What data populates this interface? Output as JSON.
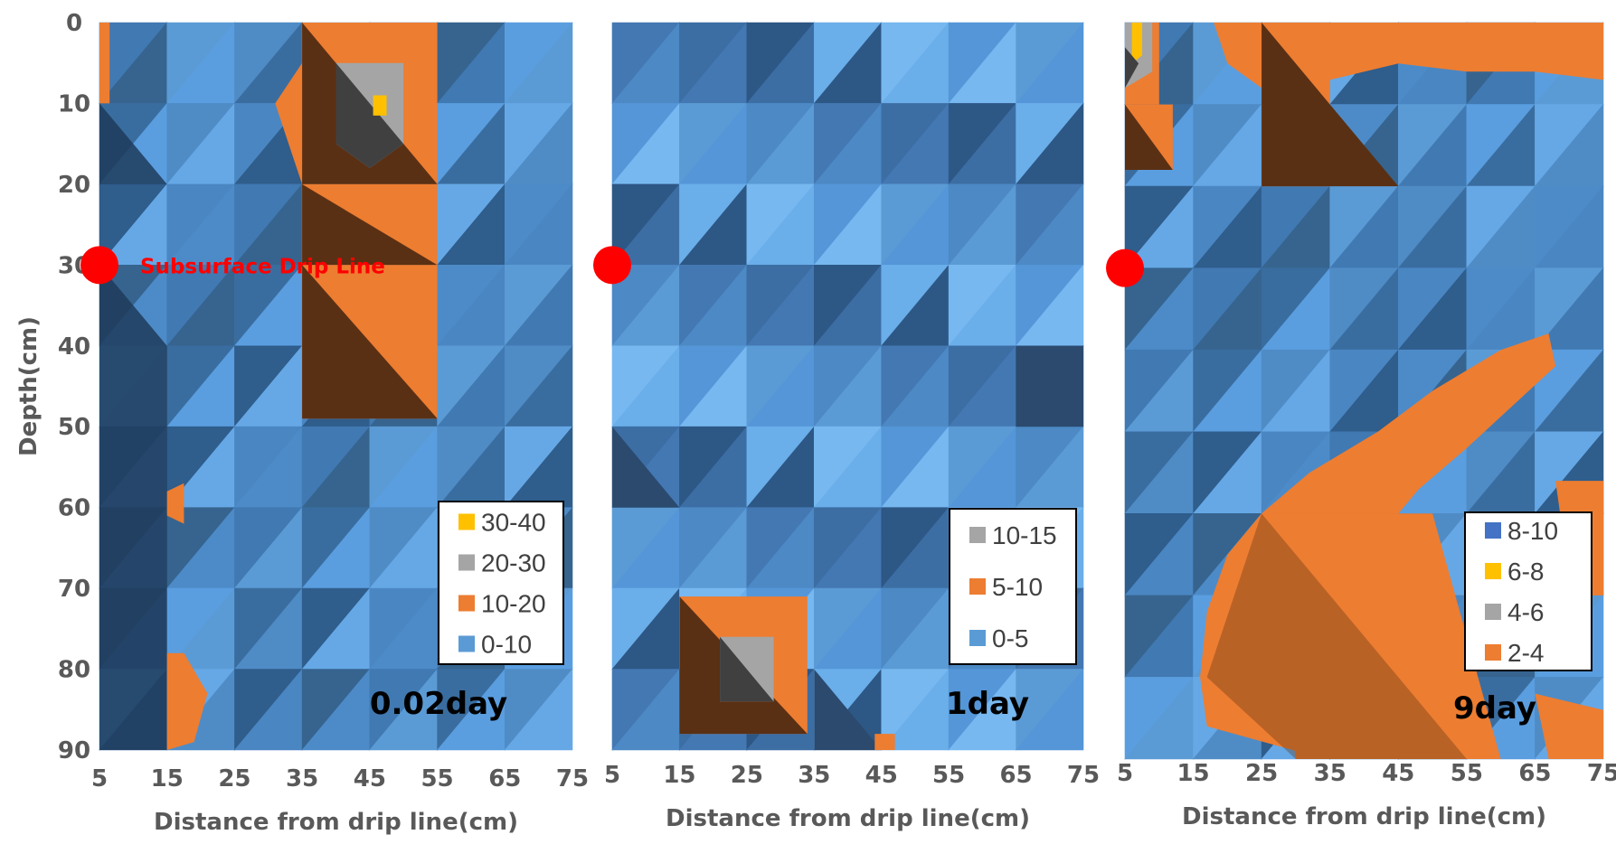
{
  "chart_data": [
    {
      "type": "heatmap",
      "day_label": "0.02day",
      "ylabel": "Depth(cm)",
      "xlabel": "Distance from drip line(cm)",
      "x_ticks": [
        "5",
        "15",
        "25",
        "35",
        "45",
        "55",
        "65",
        "75"
      ],
      "y_ticks": [
        "0",
        "10",
        "20",
        "30",
        "40",
        "50",
        "60",
        "70",
        "80",
        "90"
      ],
      "xlim": [
        5,
        75
      ],
      "ylim": [
        0,
        90
      ],
      "annotation": "Subsurface Drip Line",
      "drip_line": {
        "x": 5,
        "depth": 30
      },
      "legend": [
        {
          "label": "30-40",
          "color": "#ffc000"
        },
        {
          "label": "20-30",
          "color": "#a5a5a5"
        },
        {
          "label": "10-20",
          "color": "#ed7d31"
        },
        {
          "label": "0-10",
          "color": "#5b9bd5"
        }
      ]
    },
    {
      "type": "heatmap",
      "day_label": "1day",
      "xlabel": "Distance from drip line(cm)",
      "x_ticks": [
        "5",
        "15",
        "25",
        "35",
        "45",
        "55",
        "65",
        "75"
      ],
      "xlim": [
        5,
        75
      ],
      "ylim": [
        0,
        90
      ],
      "drip_line": {
        "x": 5,
        "depth": 30
      },
      "legend": [
        {
          "label": "10-15",
          "color": "#a5a5a5"
        },
        {
          "label": "5-10",
          "color": "#ed7d31"
        },
        {
          "label": "0-5",
          "color": "#5b9bd5"
        }
      ]
    },
    {
      "type": "heatmap",
      "day_label": "9day",
      "xlabel": "Distance from drip line(cm)",
      "x_ticks": [
        "5",
        "15",
        "25",
        "35",
        "45",
        "55",
        "65",
        "75"
      ],
      "xlim": [
        5,
        75
      ],
      "ylim": [
        0,
        90
      ],
      "drip_line": {
        "x": 5,
        "depth": 30
      },
      "legend": [
        {
          "label": "8-10",
          "color": "#4472c4"
        },
        {
          "label": "6-8",
          "color": "#ffc000"
        },
        {
          "label": "4-6",
          "color": "#a5a5a5"
        },
        {
          "label": "2-4",
          "color": "#ed7d31"
        }
      ]
    }
  ]
}
